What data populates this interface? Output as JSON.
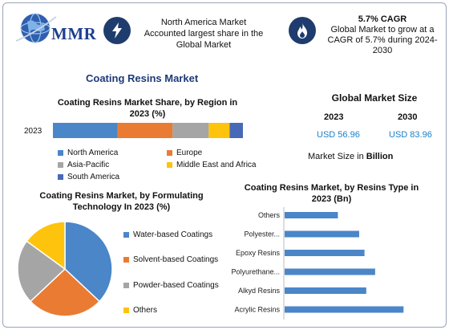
{
  "header": {
    "logo_text": "MMR",
    "stat1_text": "North America Market Accounted largest share in the Global Market",
    "stat2_title": "5.7% CAGR",
    "stat2_text": "Global Market to grow at a CAGR of 5.7% during 2024-2030"
  },
  "main_title": "Coating Resins Market",
  "market_size": {
    "title": "Global Market Size",
    "year1": "2023",
    "year2": "2030",
    "value1": "USD 56.96",
    "value2": "USD 83.96",
    "note_prefix": "Market Size in ",
    "note_unit": "Billion"
  },
  "colors": {
    "blue": "#4a86c8",
    "orange": "#ea7b33",
    "gray": "#a5a5a5",
    "yellow": "#fec30c",
    "darkblue": "#4869b8",
    "badge": "#1f3c6e"
  },
  "chart_data": [
    {
      "type": "bar",
      "orientation": "horizontal-stacked",
      "title": "Coating Resins Market Share, by Region in 2023 (%)",
      "categories": [
        "2023"
      ],
      "series": [
        {
          "name": "North America",
          "values": [
            34
          ]
        },
        {
          "name": "Europe",
          "values": [
            29
          ]
        },
        {
          "name": "Asia-Pacific",
          "values": [
            19
          ]
        },
        {
          "name": "Middle East and Africa",
          "values": [
            11
          ]
        },
        {
          "name": "South America",
          "values": [
            7
          ]
        }
      ],
      "legend": "bottom"
    },
    {
      "type": "pie",
      "title": "Coating Resins Market, by Formulating Technology In 2023 (%)",
      "labels": [
        "Water-based Coatings",
        "Solvent-based Coatings",
        "Powder-based Coatings",
        "Others"
      ],
      "values": [
        37,
        26,
        22,
        15
      ],
      "legend": "right"
    },
    {
      "type": "bar",
      "orientation": "horizontal",
      "title": "Coating Resins Market, by Resins Type in 2023 (Bn)",
      "categories": [
        "Others",
        "Polyester...",
        "Epoxy Resins",
        "Polyurethane...",
        "Alkyd Resins",
        "Acrylic Resins"
      ],
      "values": [
        6.0,
        8.4,
        9.0,
        10.2,
        9.2,
        13.4
      ],
      "xlim": [
        0,
        15
      ]
    }
  ]
}
